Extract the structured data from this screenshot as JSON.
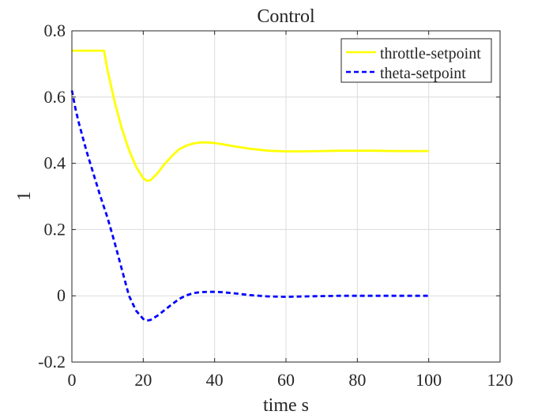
{
  "chart_data": {
    "type": "line",
    "title": "Control",
    "xlabel": "time s",
    "ylabel": "1",
    "xlim": [
      0,
      120
    ],
    "ylim": [
      -0.2,
      0.8
    ],
    "xticks": [
      0,
      20,
      40,
      60,
      80,
      100,
      120
    ],
    "yticks": [
      -0.2,
      0,
      0.2,
      0.4,
      0.6,
      0.8
    ],
    "xtick_labels": [
      "0",
      "20",
      "40",
      "60",
      "80",
      "100",
      "120"
    ],
    "ytick_labels": [
      "-0.2",
      "0",
      "0.2",
      "0.4",
      "0.6",
      "0.8"
    ],
    "grid": true,
    "legend": "top-right",
    "series": [
      {
        "name": "throttle-setpoint",
        "color": "#ffff00",
        "dash": "solid",
        "x": [
          0,
          9,
          10,
          12,
          14,
          16,
          18,
          20,
          21,
          22,
          24,
          26,
          28,
          30,
          32,
          34,
          36,
          38,
          40,
          42,
          45,
          50,
          55,
          60,
          65,
          70,
          75,
          80,
          85,
          90,
          95,
          100
        ],
        "y": [
          0.74,
          0.74,
          0.68,
          0.585,
          0.505,
          0.44,
          0.39,
          0.355,
          0.347,
          0.349,
          0.37,
          0.398,
          0.422,
          0.442,
          0.453,
          0.46,
          0.463,
          0.463,
          0.461,
          0.458,
          0.452,
          0.444,
          0.438,
          0.436,
          0.436,
          0.437,
          0.438,
          0.438,
          0.438,
          0.437,
          0.437,
          0.437
        ]
      },
      {
        "name": "theta-setpoint",
        "color": "#0000ff",
        "dash": "dashed",
        "x": [
          0,
          1,
          2,
          4,
          6,
          8,
          10,
          12,
          14,
          16,
          18,
          20,
          21,
          22,
          24,
          26,
          28,
          30,
          32,
          34,
          36,
          38,
          40,
          42,
          45,
          50,
          55,
          60,
          65,
          70,
          75,
          80,
          85,
          90,
          95,
          100
        ],
        "y": [
          0.62,
          0.565,
          0.52,
          0.44,
          0.37,
          0.3,
          0.235,
          0.16,
          0.08,
          0.0,
          -0.045,
          -0.07,
          -0.075,
          -0.073,
          -0.06,
          -0.043,
          -0.026,
          -0.01,
          0.001,
          0.008,
          0.011,
          0.012,
          0.012,
          0.011,
          0.008,
          0.002,
          -0.002,
          -0.003,
          -0.002,
          -0.001,
          0.0,
          0.0,
          0.0,
          0.0,
          0.0,
          0.0
        ]
      }
    ]
  }
}
